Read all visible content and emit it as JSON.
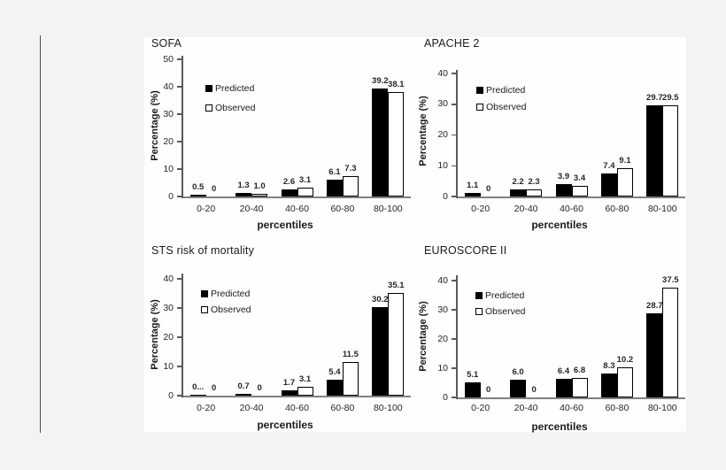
{
  "figure": {
    "colors": {
      "page_background": "#f3f3f3",
      "panel_background": "#ffffff",
      "axis": "#808080",
      "bar_predicted": "#000000",
      "bar_observed_fill": "#ffffff",
      "bar_observed_border": "#000000",
      "text": "#1a1a1a"
    },
    "legend": {
      "predicted": "Predicted",
      "observed": "Observed"
    }
  },
  "chart_data": [
    {
      "type": "bar",
      "title": "SOFA",
      "xlabel": "percentiles",
      "ylabel": "Percentage (%)",
      "categories": [
        "0-20",
        "20-40",
        "40-60",
        "60-80",
        "80-100"
      ],
      "yticks": [
        0,
        10,
        20,
        30,
        40,
        50
      ],
      "ylim": [
        0,
        50
      ],
      "grid": false,
      "legend_position": "upper-left-inside",
      "series": [
        {
          "name": "Predicted",
          "fill": "solid-black",
          "values": [
            0.5,
            1.3,
            2.6,
            6.1,
            39.2
          ],
          "labels": [
            "0.5",
            "1.3",
            "2.6",
            "6.1",
            "39.2"
          ]
        },
        {
          "name": "Observed",
          "fill": "white-outline",
          "values": [
            0,
            1.0,
            3.1,
            7.3,
            38.1
          ],
          "labels": [
            "0",
            "1.0",
            "3.1",
            "7.3",
            "38.1"
          ]
        }
      ]
    },
    {
      "type": "bar",
      "title": "APACHE 2",
      "xlabel": "percentiles",
      "ylabel": "Percentage (%)",
      "categories": [
        "0-20",
        "20-40",
        "40-60",
        "60-80",
        "80-100"
      ],
      "yticks": [
        0,
        10,
        20,
        30,
        40
      ],
      "ylim": [
        0,
        40
      ],
      "grid": false,
      "legend_position": "upper-left-inside",
      "series": [
        {
          "name": "Predicted",
          "fill": "solid-black",
          "values": [
            1.1,
            2.2,
            3.9,
            7.4,
            29.7
          ],
          "labels": [
            "1.1",
            "2.2",
            "3.9",
            "7.4",
            "29.7"
          ]
        },
        {
          "name": "Observed",
          "fill": "white-outline",
          "values": [
            0,
            2.3,
            3.4,
            9.1,
            29.5
          ],
          "labels": [
            "0",
            "2.3",
            "3.4",
            "9.1",
            "29.5"
          ]
        }
      ]
    },
    {
      "type": "bar",
      "title": "STS risk of mortality",
      "xlabel": "percentiles",
      "ylabel": "Percentage (%)",
      "categories": [
        "0-20",
        "20-40",
        "40-60",
        "60-80",
        "80-100"
      ],
      "yticks": [
        0,
        10,
        20,
        30,
        40
      ],
      "ylim": [
        0,
        40
      ],
      "grid": false,
      "legend_position": "upper-left-inside",
      "series": [
        {
          "name": "Predicted",
          "fill": "solid-black",
          "values": [
            0.3,
            0.7,
            1.7,
            5.4,
            30.2
          ],
          "labels": [
            "0...",
            "0.7",
            "1.7",
            "5.4",
            "30.2"
          ]
        },
        {
          "name": "Observed",
          "fill": "white-outline",
          "values": [
            0,
            0,
            3.1,
            11.5,
            35.1
          ],
          "labels": [
            "0",
            "0",
            "3.1",
            "11.5",
            "35.1"
          ]
        }
      ]
    },
    {
      "type": "bar",
      "title": "EUROSCORE II",
      "xlabel": "percentiles",
      "ylabel": "Percentage (%)",
      "categories": [
        "0-20",
        "20-40",
        "40-60",
        "60-80",
        "80-100"
      ],
      "yticks": [
        0,
        10,
        20,
        30,
        40
      ],
      "ylim": [
        0,
        40
      ],
      "grid": false,
      "legend_position": "upper-left-inside",
      "series": [
        {
          "name": "Predicted",
          "fill": "solid-black",
          "values": [
            5.1,
            6.0,
            6.4,
            8.3,
            28.7
          ],
          "labels": [
            "5.1",
            "6.0",
            "6.4",
            "8.3",
            "28.7"
          ]
        },
        {
          "name": "Observed",
          "fill": "white-outline",
          "values": [
            0,
            0,
            6.8,
            10.2,
            37.5
          ],
          "labels": [
            "0",
            "0",
            "6.8",
            "10.2",
            "37.5"
          ]
        }
      ]
    }
  ]
}
